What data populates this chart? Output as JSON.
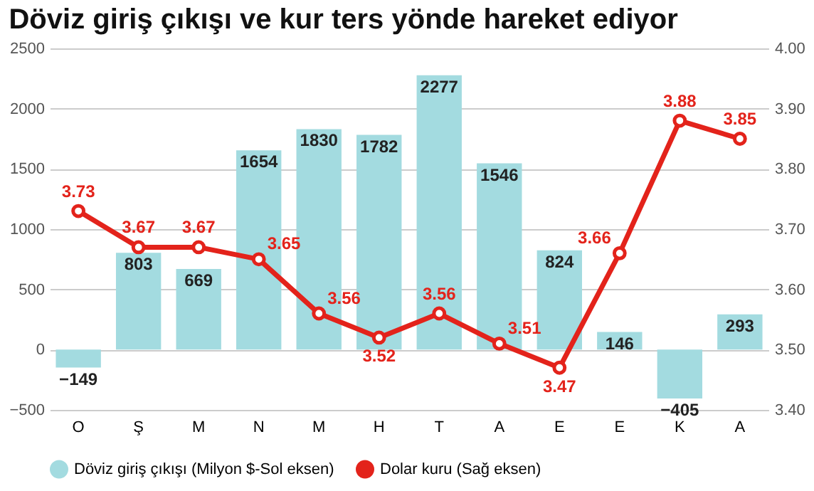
{
  "chart_data": {
    "type": "bar",
    "title": "Döviz giriş çıkışı ve kur ters yönde hareket ediyor",
    "categories": [
      "O",
      "Ş",
      "M",
      "N",
      "M",
      "H",
      "T",
      "A",
      "E",
      "E",
      "K",
      "A"
    ],
    "series": [
      {
        "name": "Döviz giriş çıkışı (Milyon $-Sol eksen)",
        "color": "#a3dbe0",
        "values": [
          -149,
          803,
          669,
          1654,
          1830,
          1782,
          2277,
          1546,
          824,
          146,
          -405,
          293
        ]
      },
      {
        "name": "Dolar kuru (Sağ eksen)",
        "type": "line",
        "axis": "y2",
        "color": "#e3231b",
        "marker": "circle",
        "values": [
          3.73,
          3.67,
          3.67,
          3.65,
          3.56,
          3.52,
          3.56,
          3.51,
          3.47,
          3.66,
          3.88,
          3.85
        ]
      }
    ],
    "ylim": [
      -500,
      2500
    ],
    "yticks": [
      -500,
      0,
      500,
      1000,
      1500,
      2000,
      2500
    ],
    "y2lim": [
      3.4,
      4.0
    ],
    "y2ticks": [
      {
        "value": 3.4,
        "label": "3.40"
      },
      {
        "value": 3.5,
        "label": "3.50"
      },
      {
        "value": 3.6,
        "label": "3.60"
      },
      {
        "value": 3.7,
        "label": "3.70"
      },
      {
        "value": 3.8,
        "label": "3.80"
      },
      {
        "value": 3.9,
        "label": "3.90"
      },
      {
        "value": 4.0,
        "label": "4.00"
      }
    ],
    "grid": "y",
    "legend": "bottom",
    "data_labels": true
  }
}
